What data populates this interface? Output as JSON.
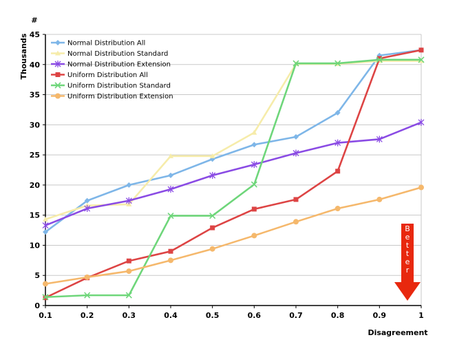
{
  "chart_data": {
    "type": "line",
    "x": [
      0.1,
      0.2,
      0.3,
      0.4,
      0.5,
      0.6,
      0.7,
      0.8,
      0.9,
      1
    ],
    "x_tick_labels": [
      "0.1",
      "0.2",
      "0.3",
      "0.4",
      "0.5",
      "0.6",
      "0.7",
      "0.8",
      "0.9",
      "1"
    ],
    "y_ticks": [
      0,
      5,
      10,
      15,
      20,
      25,
      30,
      35,
      40,
      45
    ],
    "ylim": [
      0,
      45
    ],
    "xlabel": "Disagreement",
    "ylabel": "Thousands",
    "yunit": "#",
    "grid": true,
    "legend_position": "top-left",
    "annotation": {
      "text": "Better",
      "letters": [
        "B",
        "e",
        "t",
        "t",
        "e",
        "r"
      ],
      "color": "#e8280e"
    },
    "series": [
      {
        "name": "Normal Distribution All",
        "color": "#7eb6e8",
        "marker": "diamond",
        "values": [
          12.2,
          17.4,
          20.0,
          21.6,
          24.3,
          26.7,
          28.0,
          32.0,
          41.5,
          42.4
        ]
      },
      {
        "name": "Normal Distribution Standard",
        "color": "#f6ecaa",
        "marker": "triangle",
        "values": [
          14.3,
          16.6,
          16.8,
          24.8,
          24.8,
          28.7,
          40.1,
          40.1,
          40.6,
          40.6
        ]
      },
      {
        "name": "Normal Distribution Extension",
        "color": "#8a4be4",
        "marker": "asterisk",
        "values": [
          13.3,
          16.1,
          17.4,
          19.3,
          21.6,
          23.4,
          25.3,
          27.0,
          27.6,
          30.4
        ]
      },
      {
        "name": "Uniform Distribution All",
        "color": "#dd4444",
        "marker": "square",
        "values": [
          1.3,
          4.6,
          7.4,
          9.0,
          12.9,
          16.0,
          17.6,
          22.3,
          41.0,
          42.4
        ]
      },
      {
        "name": "Uniform Distribution Standard",
        "color": "#6ed67a",
        "marker": "x",
        "values": [
          1.4,
          1.7,
          1.7,
          14.9,
          14.9,
          20.1,
          40.2,
          40.2,
          40.8,
          40.8
        ]
      },
      {
        "name": "Uniform Distribution Extension",
        "color": "#f5b86c",
        "marker": "circle",
        "values": [
          3.6,
          4.7,
          5.7,
          7.5,
          9.4,
          11.6,
          13.9,
          16.1,
          17.6,
          19.6
        ]
      }
    ]
  }
}
